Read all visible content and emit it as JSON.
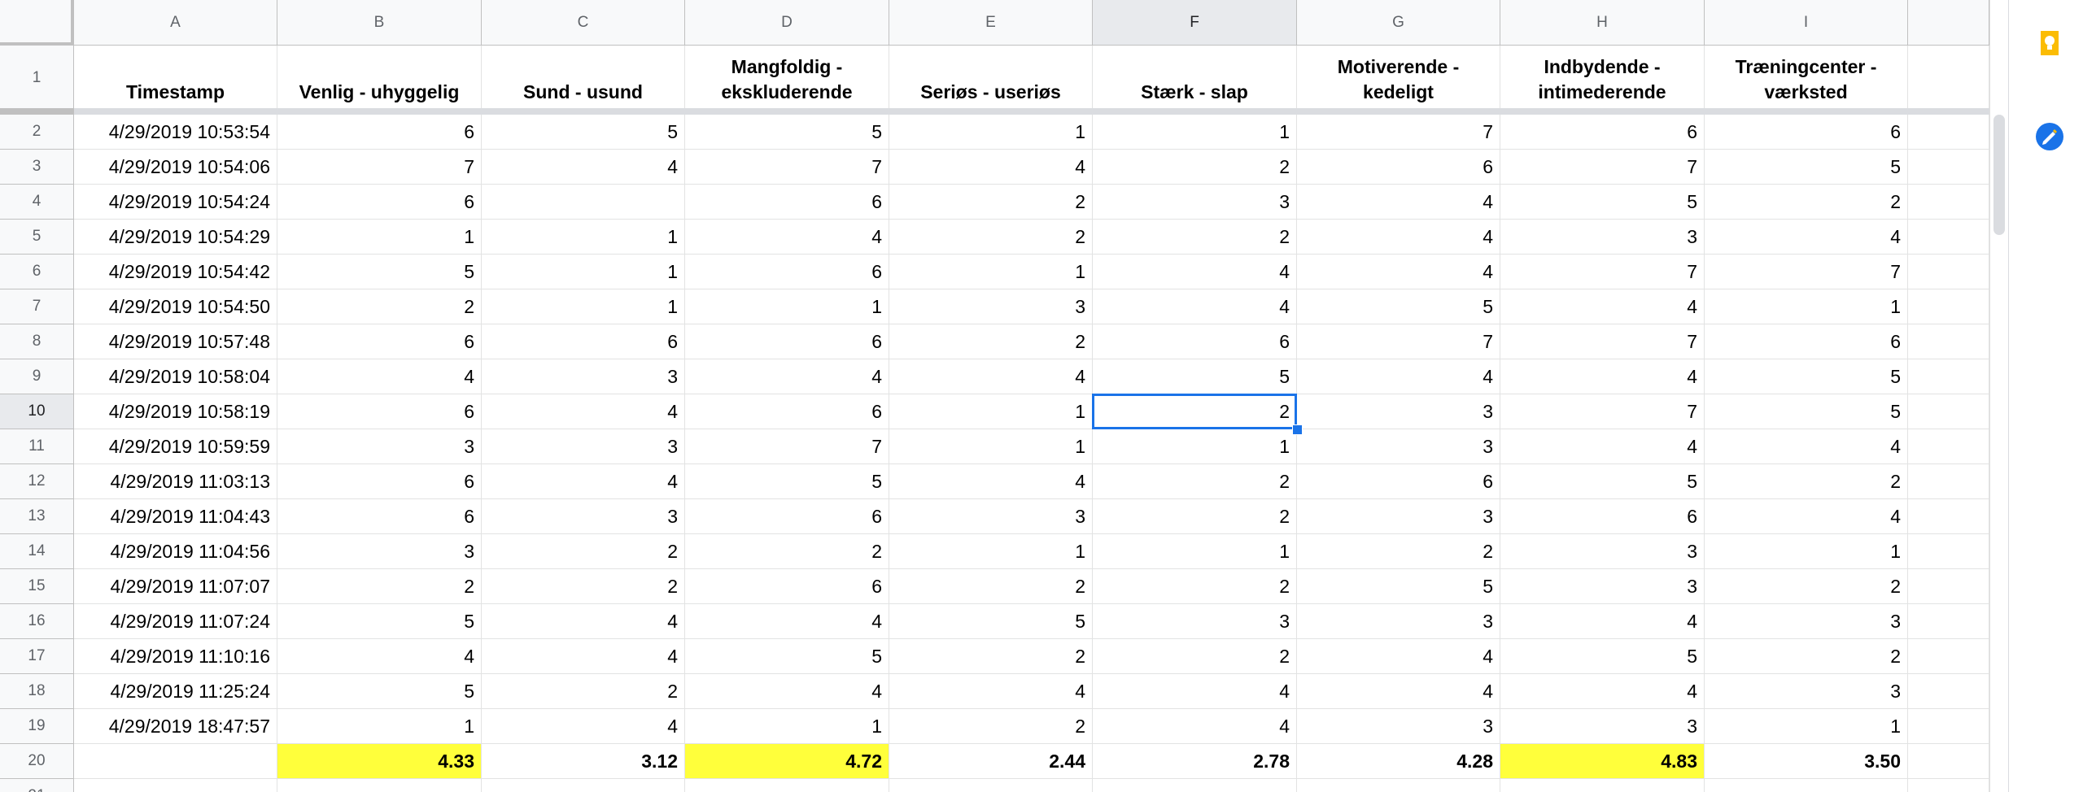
{
  "columns": [
    "A",
    "B",
    "C",
    "D",
    "E",
    "F",
    "G",
    "H",
    "I"
  ],
  "selected_column": "F",
  "headers": [
    "Timestamp",
    "Venlig - uhyggelig",
    "Sund - usund",
    "Mangfoldig - ekskluderende",
    "Seriøs - useriøs",
    "Stærk - slap",
    "Motiverende - kedeligt",
    "Indbydende - intimederende",
    "Træningcenter - værksted"
  ],
  "rows": [
    [
      "4/29/2019 10:53:54",
      "6",
      "5",
      "5",
      "1",
      "1",
      "7",
      "6",
      "6"
    ],
    [
      "4/29/2019 10:54:06",
      "7",
      "4",
      "7",
      "4",
      "2",
      "6",
      "7",
      "5"
    ],
    [
      "4/29/2019 10:54:24",
      "6",
      "",
      "6",
      "2",
      "3",
      "4",
      "5",
      "2"
    ],
    [
      "4/29/2019 10:54:29",
      "1",
      "1",
      "4",
      "2",
      "2",
      "4",
      "3",
      "4"
    ],
    [
      "4/29/2019 10:54:42",
      "5",
      "1",
      "6",
      "1",
      "4",
      "4",
      "7",
      "7"
    ],
    [
      "4/29/2019 10:54:50",
      "2",
      "1",
      "1",
      "3",
      "4",
      "5",
      "4",
      "1"
    ],
    [
      "4/29/2019 10:57:48",
      "6",
      "6",
      "6",
      "2",
      "6",
      "7",
      "7",
      "6"
    ],
    [
      "4/29/2019 10:58:04",
      "4",
      "3",
      "4",
      "4",
      "5",
      "4",
      "4",
      "5"
    ],
    [
      "4/29/2019 10:58:19",
      "6",
      "4",
      "6",
      "1",
      "2",
      "3",
      "7",
      "5"
    ],
    [
      "4/29/2019 10:59:59",
      "3",
      "3",
      "7",
      "1",
      "1",
      "3",
      "4",
      "4"
    ],
    [
      "4/29/2019 11:03:13",
      "6",
      "4",
      "5",
      "4",
      "2",
      "6",
      "5",
      "2"
    ],
    [
      "4/29/2019 11:04:43",
      "6",
      "3",
      "6",
      "3",
      "2",
      "3",
      "6",
      "4"
    ],
    [
      "4/29/2019 11:04:56",
      "3",
      "2",
      "2",
      "1",
      "1",
      "2",
      "3",
      "1"
    ],
    [
      "4/29/2019 11:07:07",
      "2",
      "2",
      "6",
      "2",
      "2",
      "5",
      "3",
      "2"
    ],
    [
      "4/29/2019 11:07:24",
      "5",
      "4",
      "4",
      "5",
      "3",
      "3",
      "4",
      "3"
    ],
    [
      "4/29/2019 11:10:16",
      "4",
      "4",
      "5",
      "2",
      "2",
      "4",
      "5",
      "2"
    ],
    [
      "4/29/2019 11:25:24",
      "5",
      "2",
      "4",
      "4",
      "4",
      "4",
      "4",
      "3"
    ],
    [
      "4/29/2019 18:47:57",
      "1",
      "4",
      "1",
      "2",
      "4",
      "3",
      "3",
      "1"
    ]
  ],
  "averages": [
    "",
    "4.33",
    "3.12",
    "4.72",
    "2.44",
    "2.78",
    "4.28",
    "4.83",
    "3.50"
  ],
  "highlighted_averages": [
    1,
    3,
    7
  ],
  "highlight_color": "#ffff3b",
  "selection_color": "#1a73e8",
  "selected_cell": "F10",
  "side_icons": [
    "keep-icon",
    "tasks-icon"
  ]
}
